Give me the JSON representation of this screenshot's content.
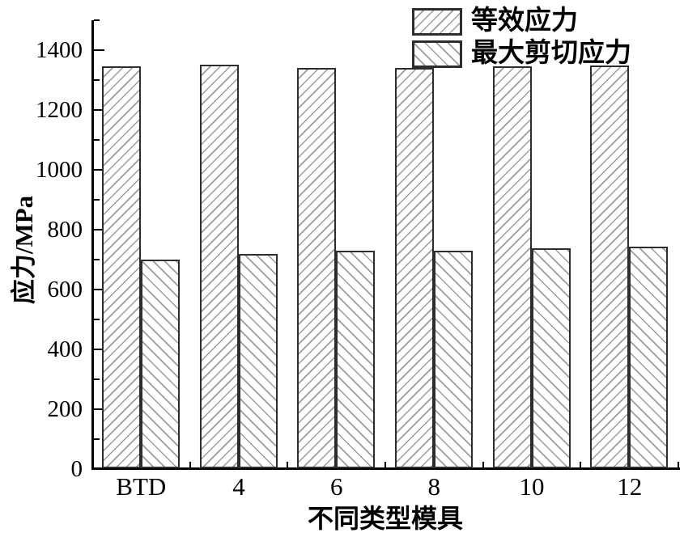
{
  "chart_data": {
    "type": "bar",
    "title": "",
    "xlabel": "不同类型模具",
    "ylabel": "应力/MPa",
    "categories": [
      "BTD",
      "4",
      "6",
      "8",
      "10",
      "12"
    ],
    "series": [
      {
        "id": "equivalent-stress",
        "name": "等效应力",
        "hatch": "forward-diagonal",
        "values": [
          1345,
          1351,
          1342,
          1340,
          1346,
          1350
        ]
      },
      {
        "id": "max-shear-stress",
        "name": "最大剪切应力",
        "hatch": "backward-diagonal",
        "values": [
          701,
          718,
          731,
          730,
          737,
          743
        ]
      }
    ],
    "ylim": [
      0,
      1500
    ],
    "y_major_ticks": [
      0,
      200,
      400,
      600,
      800,
      1000,
      1200,
      1400
    ],
    "y_minor_ticks": [
      100,
      300,
      500,
      700,
      900,
      1100,
      1300,
      1500
    ],
    "grid": false,
    "legend_position": "top-right",
    "colors": {
      "background": "#ffffff",
      "bar_fill": "#ffffff",
      "hatch": "#9b9b9b",
      "bar_border": "#2d2d2d",
      "axis": "#000000",
      "text": "#000000"
    }
  }
}
